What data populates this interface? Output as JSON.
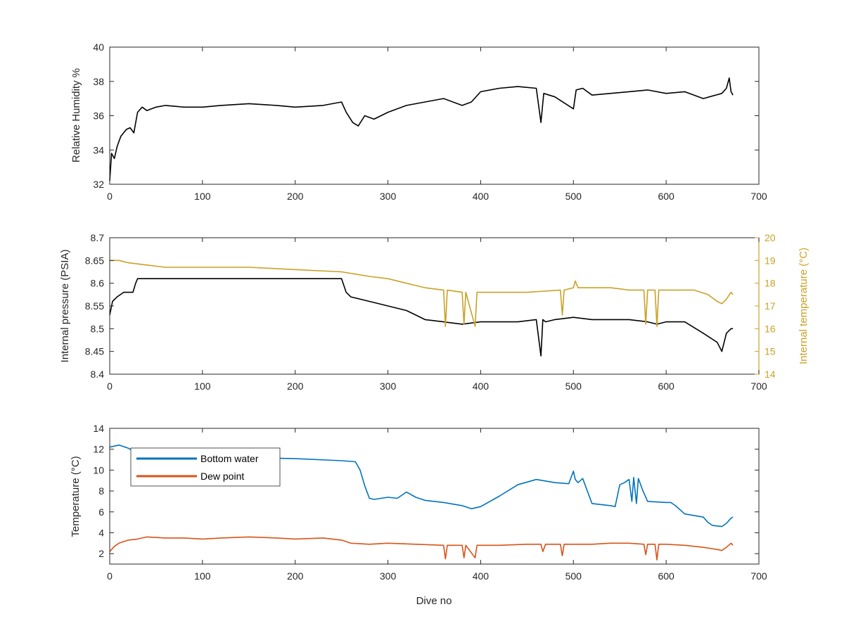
{
  "colors": {
    "axis": "#262626",
    "black_series": "#000000",
    "right_axis": "#C9A227",
    "bottom_water": "#0072BD",
    "dew_point": "#D95319"
  },
  "chart_data": [
    {
      "type": "line",
      "xlabel": "",
      "ylabel": "Relative Humidity %",
      "xlim": [
        0,
        700
      ],
      "ylim": [
        32,
        40
      ],
      "xticks": [
        "0",
        "100",
        "200",
        "300",
        "400",
        "500",
        "600",
        "700"
      ],
      "yticks": [
        "32",
        "34",
        "36",
        "38",
        "40"
      ],
      "series": [
        {
          "name": "",
          "color": "#000000",
          "x": [
            0,
            2,
            5,
            8,
            12,
            18,
            22,
            26,
            30,
            35,
            40,
            50,
            60,
            80,
            100,
            120,
            150,
            180,
            200,
            230,
            250,
            255,
            262,
            268,
            275,
            285,
            300,
            320,
            340,
            360,
            380,
            390,
            400,
            420,
            440,
            460,
            465,
            468,
            480,
            500,
            503,
            510,
            520,
            540,
            560,
            580,
            600,
            620,
            640,
            660,
            665,
            668,
            670,
            672
          ],
          "y": [
            32.2,
            33.8,
            33.5,
            34.2,
            34.8,
            35.2,
            35.3,
            35.0,
            36.2,
            36.5,
            36.3,
            36.5,
            36.6,
            36.5,
            36.5,
            36.6,
            36.7,
            36.6,
            36.5,
            36.6,
            36.8,
            36.2,
            35.6,
            35.4,
            36.0,
            35.8,
            36.2,
            36.6,
            36.8,
            37.0,
            36.6,
            36.8,
            37.4,
            37.6,
            37.7,
            37.6,
            35.6,
            37.3,
            37.1,
            36.4,
            37.5,
            37.6,
            37.2,
            37.3,
            37.4,
            37.5,
            37.3,
            37.4,
            37.0,
            37.3,
            37.6,
            38.2,
            37.4,
            37.2
          ]
        }
      ]
    },
    {
      "type": "line",
      "xlabel": "",
      "ylabel": "Internal pressure (PSIA)",
      "y2label": "Internal temperature (°C)",
      "xlim": [
        0,
        700
      ],
      "ylim": [
        8.4,
        8.7
      ],
      "y2lim": [
        14,
        20
      ],
      "xticks": [
        "0",
        "100",
        "200",
        "300",
        "400",
        "500",
        "600",
        "700"
      ],
      "yticks": [
        "8.4",
        "8.45",
        "8.5",
        "8.55",
        "8.6",
        "8.65",
        "8.7"
      ],
      "y2ticks": [
        "14",
        "15",
        "16",
        "17",
        "18",
        "19",
        "20"
      ],
      "series": [
        {
          "name": "",
          "axis": "left",
          "color": "#000000",
          "x": [
            0,
            3,
            8,
            15,
            25,
            28,
            30,
            60,
            100,
            150,
            200,
            240,
            250,
            255,
            260,
            280,
            300,
            320,
            330,
            340,
            360,
            380,
            400,
            420,
            440,
            460,
            465,
            467,
            470,
            480,
            500,
            520,
            540,
            560,
            580,
            590,
            600,
            620,
            640,
            655,
            660,
            665,
            670,
            672
          ],
          "y": [
            8.53,
            8.56,
            8.57,
            8.58,
            8.58,
            8.6,
            8.61,
            8.61,
            8.61,
            8.61,
            8.61,
            8.61,
            8.61,
            8.58,
            8.57,
            8.56,
            8.55,
            8.54,
            8.53,
            8.52,
            8.515,
            8.51,
            8.515,
            8.515,
            8.515,
            8.52,
            8.44,
            8.52,
            8.515,
            8.52,
            8.525,
            8.52,
            8.52,
            8.52,
            8.515,
            8.51,
            8.515,
            8.515,
            8.49,
            8.47,
            8.45,
            8.49,
            8.5,
            8.5
          ]
        },
        {
          "name": "",
          "axis": "right",
          "color": "#C9A227",
          "x": [
            0,
            10,
            20,
            40,
            60,
            100,
            150,
            200,
            250,
            280,
            300,
            320,
            330,
            340,
            350,
            360,
            362,
            364,
            380,
            382,
            384,
            394,
            396,
            398,
            420,
            450,
            486,
            488,
            490,
            500,
            502,
            505,
            520,
            540,
            560,
            576,
            578,
            580,
            588,
            590,
            592,
            600,
            630,
            645,
            655,
            660,
            665,
            670,
            672
          ],
          "y": [
            19.0,
            19.0,
            18.9,
            18.8,
            18.7,
            18.7,
            18.7,
            18.6,
            18.5,
            18.3,
            18.2,
            18.0,
            17.9,
            17.8,
            17.75,
            17.7,
            16.1,
            17.7,
            17.6,
            16.2,
            17.6,
            16.1,
            17.6,
            17.6,
            17.6,
            17.6,
            17.7,
            16.6,
            17.7,
            17.8,
            18.1,
            17.8,
            17.8,
            17.8,
            17.7,
            17.7,
            16.2,
            17.7,
            17.7,
            16.1,
            17.7,
            17.7,
            17.7,
            17.5,
            17.2,
            17.1,
            17.3,
            17.6,
            17.5
          ]
        }
      ]
    },
    {
      "type": "line",
      "xlabel": "Dive no",
      "ylabel": "Temperature (°C)",
      "xlim": [
        0,
        700
      ],
      "ylim": [
        1,
        14
      ],
      "xticks": [
        "0",
        "100",
        "200",
        "300",
        "400",
        "500",
        "600",
        "700"
      ],
      "yticks": [
        "2",
        "4",
        "6",
        "8",
        "10",
        "12",
        "14"
      ],
      "legend": "top-left",
      "series": [
        {
          "name": "Bottom water",
          "color": "#0072BD",
          "x": [
            0,
            10,
            20,
            30,
            50,
            100,
            150,
            200,
            250,
            265,
            270,
            275,
            280,
            285,
            300,
            310,
            320,
            330,
            340,
            360,
            380,
            390,
            400,
            420,
            440,
            460,
            480,
            495,
            500,
            502,
            505,
            510,
            520,
            540,
            545,
            550,
            555,
            560,
            563,
            565,
            568,
            570,
            575,
            580,
            600,
            605,
            610,
            620,
            640,
            645,
            650,
            660,
            665,
            670,
            672
          ],
          "y": [
            12.2,
            12.4,
            12.1,
            11.6,
            11.4,
            11.3,
            11.2,
            11.1,
            10.9,
            10.8,
            10.0,
            8.5,
            7.3,
            7.2,
            7.4,
            7.3,
            7.9,
            7.4,
            7.1,
            6.9,
            6.6,
            6.3,
            6.5,
            7.5,
            8.6,
            9.1,
            8.8,
            8.7,
            9.9,
            9.1,
            8.8,
            9.2,
            6.8,
            6.6,
            6.5,
            8.6,
            8.8,
            9.1,
            7.0,
            9.3,
            6.8,
            9.2,
            8.0,
            7.0,
            6.9,
            6.9,
            6.6,
            5.8,
            5.5,
            5.0,
            4.7,
            4.6,
            4.9,
            5.4,
            5.5
          ]
        },
        {
          "name": "Dew point",
          "color": "#D95319",
          "x": [
            0,
            5,
            10,
            20,
            30,
            40,
            60,
            80,
            100,
            120,
            150,
            180,
            200,
            230,
            250,
            260,
            280,
            300,
            330,
            360,
            362,
            364,
            380,
            382,
            384,
            394,
            396,
            398,
            420,
            450,
            465,
            467,
            470,
            486,
            488,
            490,
            500,
            520,
            540,
            560,
            576,
            578,
            580,
            588,
            590,
            592,
            600,
            620,
            640,
            655,
            660,
            665,
            670,
            672
          ],
          "y": [
            2.2,
            2.7,
            3.0,
            3.3,
            3.4,
            3.6,
            3.5,
            3.5,
            3.4,
            3.5,
            3.6,
            3.5,
            3.4,
            3.5,
            3.3,
            3.0,
            2.9,
            3.0,
            2.9,
            2.8,
            1.5,
            2.8,
            2.8,
            1.6,
            2.8,
            1.6,
            2.8,
            2.8,
            2.8,
            2.9,
            2.9,
            2.2,
            2.9,
            2.9,
            1.8,
            2.9,
            2.9,
            2.9,
            3.0,
            3.0,
            2.9,
            1.9,
            2.9,
            2.9,
            1.4,
            2.9,
            2.9,
            2.8,
            2.6,
            2.4,
            2.3,
            2.6,
            3.0,
            2.8
          ]
        }
      ]
    }
  ]
}
